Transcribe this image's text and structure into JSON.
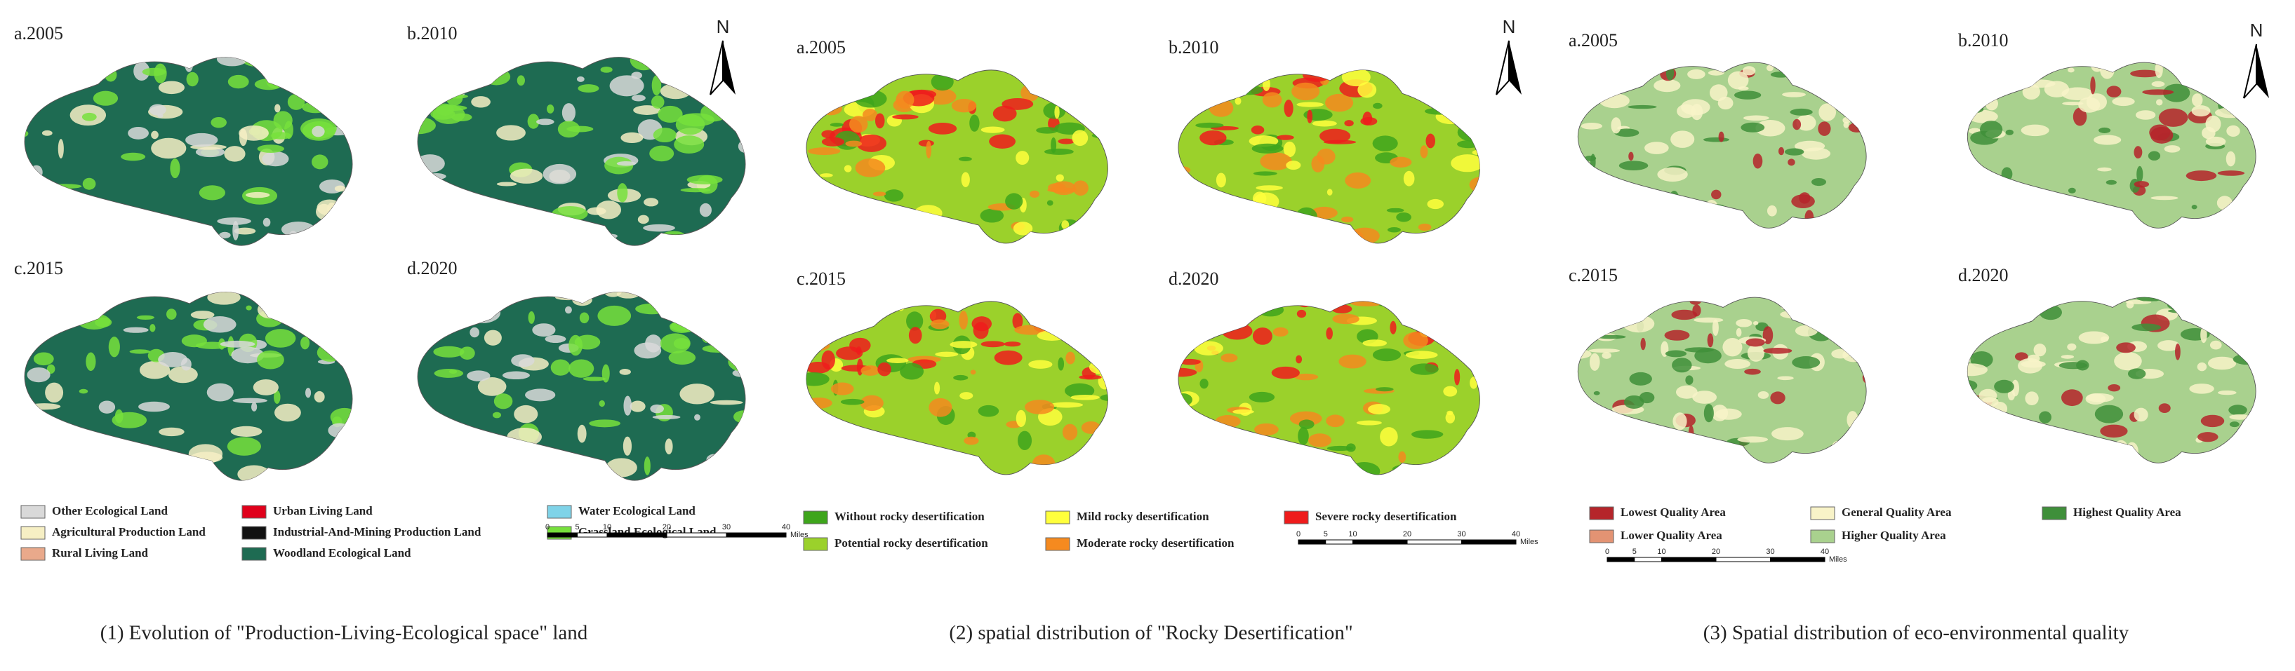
{
  "panels": [
    {
      "maps": [
        {
          "label": "a.2005"
        },
        {
          "label": "b.2010"
        },
        {
          "label": "c.2015"
        },
        {
          "label": "d.2020"
        }
      ],
      "north": "N",
      "legend": [
        {
          "label": "Other Ecological Land",
          "color": "#d9d9d9"
        },
        {
          "label": "Agricultural Production Land",
          "color": "#f6efc4"
        },
        {
          "label": "Rural Living Land",
          "color": "#e9a98b"
        },
        {
          "label": "Urban Living Land",
          "color": "#e0001b"
        },
        {
          "label": "Industrial-And-Mining Production Land",
          "color": "#111111"
        },
        {
          "label": "Woodland Ecological Land",
          "color": "#1e6b52"
        },
        {
          "label": "Water Ecological Land",
          "color": "#7fd3e8"
        },
        {
          "label": "Grassland Ecological Land",
          "color": "#77e03c"
        }
      ],
      "scale": {
        "ticks": [
          "0",
          "5",
          "10",
          "20",
          "30",
          "40"
        ],
        "unit": "Miles"
      },
      "caption": "(1) Evolution of \"Production-Living-Ecological space\" land"
    },
    {
      "maps": [
        {
          "label": "a.2005"
        },
        {
          "label": "b.2010"
        },
        {
          "label": "c.2015"
        },
        {
          "label": "d.2020"
        }
      ],
      "north": "N",
      "legend": [
        {
          "label": "Without rocky desertification",
          "color": "#3ea51c"
        },
        {
          "label": "Potential rocky desertification",
          "color": "#9bd12b"
        },
        {
          "label": "Mild rocky desertification",
          "color": "#ffff3c"
        },
        {
          "label": "Moderate rocky desertification",
          "color": "#f58a1f"
        },
        {
          "label": "Severe rocky desertification",
          "color": "#ee1c1c"
        }
      ],
      "scale": {
        "ticks": [
          "0",
          "5",
          "10",
          "20",
          "30",
          "40"
        ],
        "unit": "Miles"
      },
      "caption": "(2) spatial distribution of \"Rocky Desertification\""
    },
    {
      "maps": [
        {
          "label": "a.2005"
        },
        {
          "label": "b.2010"
        },
        {
          "label": "c.2015"
        },
        {
          "label": "d.2020"
        }
      ],
      "north": "N",
      "legend": [
        {
          "label": "Lowest Quality Area",
          "color": "#b5252a"
        },
        {
          "label": "Lower Quality Area",
          "color": "#e39373"
        },
        {
          "label": "General Quality Area",
          "color": "#f8f3c8"
        },
        {
          "label": "Higher Quality Area",
          "color": "#a9d18e"
        },
        {
          "label": "Highest Quality Area",
          "color": "#3f8f3a"
        }
      ],
      "scale": {
        "ticks": [
          "0",
          "5",
          "10",
          "20",
          "30",
          "40"
        ],
        "unit": "Miles"
      },
      "caption": "(3) Spatial distribution of eco-environmental quality"
    }
  ]
}
